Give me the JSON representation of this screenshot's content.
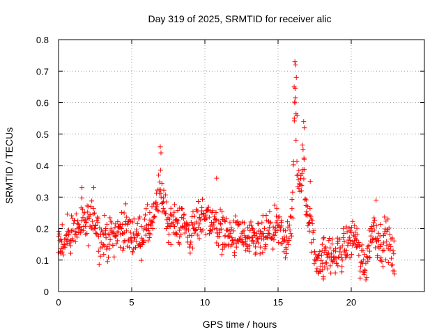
{
  "chart_data": {
    "type": "scatter",
    "title": "Day 319 of 2025, SRMTID for receiver alic",
    "xlabel": "GPS time / hours",
    "ylabel": "SRMTID / TECUs",
    "xlim": [
      0,
      25
    ],
    "ylim": [
      0,
      0.8
    ],
    "xticks": [
      "0",
      "5",
      "10",
      "15",
      "20"
    ],
    "yticks": [
      "0",
      "0.1",
      "0.2",
      "0.3",
      "0.4",
      "0.5",
      "0.6",
      "0.7",
      "0.8"
    ],
    "grid": true,
    "marker": "+",
    "color": "#ff0000",
    "series": [
      {
        "name": "SRMTID",
        "profile_note": "approximate envelope of dense scatter; points sampled every 0.05 h",
        "x_start": 0.0,
        "x_end": 22.95,
        "x_step": 0.05,
        "profile": [
          [
            0.0,
            0.15
          ],
          [
            0.5,
            0.16
          ],
          [
            1.0,
            0.19
          ],
          [
            1.5,
            0.21
          ],
          [
            2.0,
            0.21
          ],
          [
            2.4,
            0.25
          ],
          [
            2.8,
            0.17
          ],
          [
            3.5,
            0.17
          ],
          [
            4.0,
            0.19
          ],
          [
            4.5,
            0.2
          ],
          [
            5.0,
            0.18
          ],
          [
            5.5,
            0.17
          ],
          [
            6.0,
            0.2
          ],
          [
            6.5,
            0.22
          ],
          [
            6.9,
            0.33
          ],
          [
            7.1,
            0.3
          ],
          [
            7.5,
            0.22
          ],
          [
            8.0,
            0.21
          ],
          [
            8.5,
            0.22
          ],
          [
            9.0,
            0.18
          ],
          [
            9.5,
            0.22
          ],
          [
            10.0,
            0.25
          ],
          [
            10.5,
            0.22
          ],
          [
            11.0,
            0.2
          ],
          [
            11.5,
            0.18
          ],
          [
            12.0,
            0.17
          ],
          [
            12.5,
            0.18
          ],
          [
            13.0,
            0.15
          ],
          [
            13.5,
            0.16
          ],
          [
            14.0,
            0.17
          ],
          [
            14.5,
            0.19
          ],
          [
            15.0,
            0.2
          ],
          [
            15.5,
            0.15
          ],
          [
            16.0,
            0.25
          ],
          [
            16.1,
            0.55
          ],
          [
            16.2,
            0.62
          ],
          [
            16.3,
            0.4
          ],
          [
            16.5,
            0.3
          ],
          [
            16.7,
            0.44
          ],
          [
            16.9,
            0.28
          ],
          [
            17.2,
            0.22
          ],
          [
            17.5,
            0.12
          ],
          [
            18.0,
            0.1
          ],
          [
            18.5,
            0.12
          ],
          [
            19.0,
            0.11
          ],
          [
            19.5,
            0.14
          ],
          [
            20.0,
            0.17
          ],
          [
            20.3,
            0.18
          ],
          [
            20.6,
            0.1
          ],
          [
            21.0,
            0.09
          ],
          [
            21.5,
            0.21
          ],
          [
            22.0,
            0.15
          ],
          [
            22.5,
            0.17
          ],
          [
            22.95,
            0.09
          ]
        ],
        "spread": 0.045,
        "peaks": [
          {
            "x": 16.15,
            "y": 0.73
          },
          {
            "x": 16.2,
            "y": 0.72
          },
          {
            "x": 16.25,
            "y": 0.68
          },
          {
            "x": 16.1,
            "y": 0.65
          },
          {
            "x": 16.3,
            "y": 0.56
          },
          {
            "x": 16.75,
            "y": 0.54
          },
          {
            "x": 16.8,
            "y": 0.52
          },
          {
            "x": 6.95,
            "y": 0.46
          },
          {
            "x": 7.0,
            "y": 0.44
          },
          {
            "x": 17.2,
            "y": 0.35
          },
          {
            "x": 10.8,
            "y": 0.36
          },
          {
            "x": 2.4,
            "y": 0.33
          },
          {
            "x": 1.6,
            "y": 0.33
          },
          {
            "x": 21.7,
            "y": 0.29
          },
          {
            "x": 18.1,
            "y": 0.04
          }
        ]
      }
    ]
  }
}
